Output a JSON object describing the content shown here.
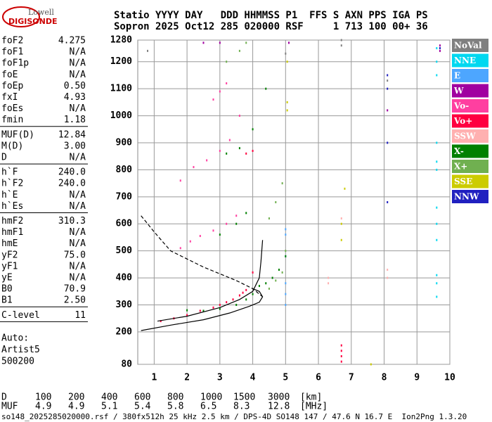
{
  "header": {
    "logo_top": "Lowell",
    "logo_bottom": "DIGISONDE",
    "line1": "Statio YYYY DAY   DDD HHMMSS P1  FFS S AXN PPS IGA PS",
    "line2": "Sopron 2025 Oct12 285 020000 RSF     1 713 100 00+ 36"
  },
  "parameters": [
    [
      [
        "foF2",
        "4.275"
      ],
      [
        "foF1",
        "N/A"
      ],
      [
        "foF1p",
        "N/A"
      ],
      [
        "foE",
        "N/A"
      ],
      [
        "foEp",
        "0.50"
      ],
      [
        "fxI",
        "4.93"
      ],
      [
        "foEs",
        "N/A"
      ],
      [
        "fmin",
        "1.18"
      ]
    ],
    [
      [
        "MUF(D)",
        "12.84"
      ],
      [
        "M(D)",
        "3.00"
      ],
      [
        "D",
        "N/A"
      ]
    ],
    [
      [
        "h`F",
        "240.0"
      ],
      [
        "h`F2",
        "240.0"
      ],
      [
        "h`E",
        "N/A"
      ],
      [
        "h`Es",
        "N/A"
      ]
    ],
    [
      [
        "hmF2",
        "310.3"
      ],
      [
        "hmF1",
        "N/A"
      ],
      [
        "hmE",
        "N/A"
      ],
      [
        "yF2",
        "75.0"
      ],
      [
        "yF1",
        "N/A"
      ],
      [
        "yE",
        "N/A"
      ],
      [
        "B0",
        "70.9"
      ],
      [
        "B1",
        "2.50"
      ]
    ],
    [
      [
        "C-level",
        "11"
      ]
    ]
  ],
  "auto": [
    "Auto:",
    "Artist5",
    "500200"
  ],
  "chart_data": {
    "type": "scatter",
    "xlim": [
      0.5,
      10
    ],
    "xticks": [
      1,
      2,
      3,
      4,
      5,
      6,
      7,
      8,
      9,
      10
    ],
    "ylim": [
      80,
      1280
    ],
    "yticks": [
      80,
      200,
      300,
      400,
      500,
      600,
      700,
      800,
      900,
      1000,
      1100,
      1200,
      1280
    ],
    "grid": true,
    "legend": "right",
    "series": [
      {
        "name": "NoVal",
        "color": "#808080",
        "x": [
          0.8,
          5.0,
          6.7,
          8.1,
          6.7
        ],
        "values": [
          1240,
          1230,
          1280,
          1130,
          1260
        ]
      },
      {
        "name": "NNE",
        "color": "#00d8f0",
        "x": [
          9.6,
          9.6,
          9.6,
          9.6,
          9.6,
          9.6,
          9.6,
          9.6,
          9.6,
          9.6,
          9.6,
          9.6
        ],
        "values": [
          330,
          380,
          410,
          540,
          600,
          660,
          800,
          830,
          900,
          1150,
          1200,
          1250
        ]
      },
      {
        "name": "E",
        "color": "#4da6ff",
        "x": [
          5.0,
          5.0,
          5.0,
          5.0,
          5.0,
          5.0
        ],
        "values": [
          300,
          340,
          380,
          480,
          560,
          580
        ]
      },
      {
        "name": "W",
        "color": "#a000a0",
        "x": [
          3.0,
          2.5,
          5.1,
          9.7,
          9.7,
          8.1
        ],
        "values": [
          1270,
          1270,
          1270,
          1260,
          1240,
          1020
        ]
      },
      {
        "name": "Vo-",
        "color": "#ff3fa0",
        "x": [
          2.1,
          2.4,
          2.8,
          3.2,
          3.5,
          2.2,
          2.6,
          3.0,
          3.3,
          3.6,
          2.8,
          3.0,
          3.2,
          1.8,
          1.8
        ],
        "values": [
          535,
          555,
          575,
          600,
          630,
          810,
          835,
          870,
          910,
          1000,
          1060,
          1090,
          1120,
          760,
          510
        ]
      },
      {
        "name": "Vo+",
        "color": "#ff0040",
        "x": [
          1.2,
          1.6,
          2.0,
          2.4,
          2.8,
          3.0,
          3.2,
          3.4,
          3.6,
          3.7,
          3.8,
          4.0,
          3.8,
          4.0,
          6.7,
          6.7,
          6.7,
          6.7
        ],
        "values": [
          240,
          250,
          262,
          278,
          290,
          300,
          310,
          320,
          335,
          345,
          355,
          420,
          860,
          870,
          90,
          110,
          130,
          150
        ]
      },
      {
        "name": "SSW",
        "color": "#ffb0b0",
        "x": [
          6.3,
          6.3,
          6.7,
          8.1,
          8.1
        ],
        "values": [
          400,
          380,
          620,
          430,
          400
        ]
      },
      {
        "name": "X-",
        "color": "#008000",
        "x": [
          2.0,
          2.5,
          3.0,
          3.5,
          3.8,
          4.0,
          4.2,
          4.4,
          4.6,
          4.8,
          5.0,
          3.0,
          3.5,
          3.8,
          3.2,
          3.6,
          4.0,
          4.4
        ],
        "values": [
          280,
          278,
          285,
          300,
          320,
          340,
          370,
          380,
          400,
          430,
          480,
          560,
          600,
          640,
          860,
          880,
          950,
          1100
        ]
      },
      {
        "name": "X+",
        "color": "#70b050",
        "x": [
          4.5,
          4.7,
          4.9,
          5.0,
          4.5,
          4.7,
          4.9,
          3.2,
          3.6,
          3.8
        ],
        "values": [
          360,
          390,
          420,
          500,
          620,
          680,
          750,
          1200,
          1240,
          1270
        ]
      },
      {
        "name": "SSE",
        "color": "#cccc00",
        "x": [
          5.05,
          5.05,
          5.05,
          6.7,
          6.7,
          6.8,
          7.6
        ],
        "values": [
          1200,
          1050,
          1020,
          600,
          540,
          730,
          80
        ]
      },
      {
        "name": "NNW",
        "color": "#2020c0",
        "x": [
          8.1,
          8.1,
          8.1,
          9.7,
          8.1
        ],
        "values": [
          1150,
          1100,
          900,
          1250,
          680
        ]
      }
    ],
    "curves": [
      {
        "dashed": false,
        "x": [
          1.1,
          2.0,
          3.0,
          3.6,
          4.0,
          4.2,
          4.25,
          4.3
        ],
        "values": [
          240,
          258,
          290,
          320,
          350,
          400,
          460,
          540
        ]
      },
      {
        "dashed": false,
        "x": [
          0.6,
          1.5,
          2.5,
          3.3,
          3.9,
          4.2,
          4.3,
          4.2,
          4.0
        ],
        "values": [
          205,
          225,
          245,
          270,
          295,
          310,
          330,
          350,
          360
        ]
      },
      {
        "dashed": true,
        "x": [
          0.6,
          1.0,
          1.5,
          2.5,
          3.5,
          4.0,
          4.3
        ],
        "values": [
          630,
          570,
          500,
          440,
          390,
          360,
          330
        ]
      }
    ]
  },
  "distance_table": [
    [
      "D",
      "100",
      "200",
      "400",
      "600",
      "800",
      "1000",
      "1500",
      "3000",
      "[km]"
    ],
    [
      "MUF",
      "4.9",
      "4.9",
      "5.1",
      "5.4",
      "5.8",
      "6.5",
      "8.3",
      "12.8",
      "[MHz]"
    ]
  ],
  "footer": "so148_2025285020000.rsf / 380fx512h 25 kHz 2.5 km / DPS-4D SO148 147 / 47.6 N 16.7 E  Ion2Png 1.3.20"
}
